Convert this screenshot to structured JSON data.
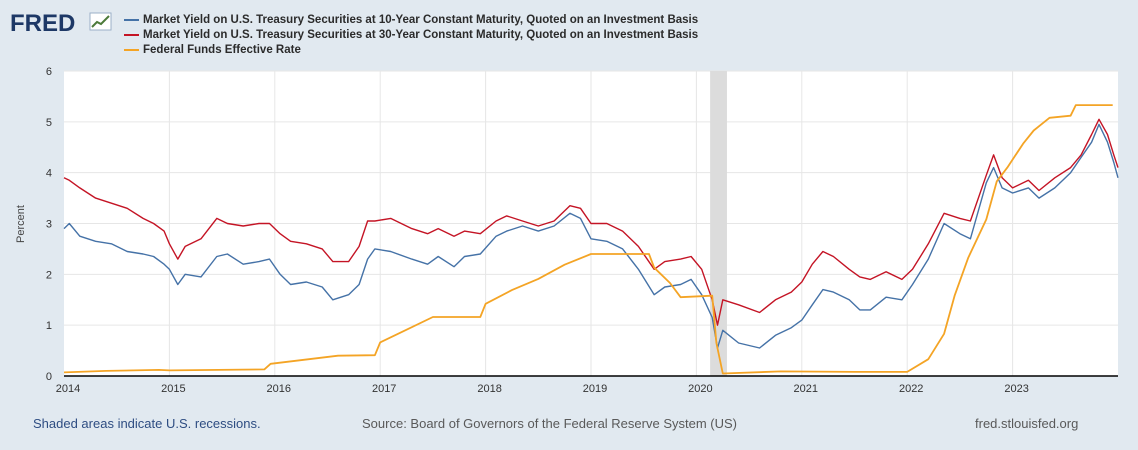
{
  "brand": {
    "logo_text": "FRED"
  },
  "footer": {
    "recession_note": "Shaded areas indicate U.S. recessions.",
    "source": "Source: Board of Governors of the Federal Reserve System (US)",
    "site": "fred.stlouisfed.org"
  },
  "chart_data": {
    "type": "line",
    "ylabel": "Percent",
    "xlabel": "",
    "xlim": [
      2014.0,
      2024.0
    ],
    "ylim": [
      0,
      6
    ],
    "grid": true,
    "legend_position": "top-left",
    "x_ticks": [
      "2014",
      "2015",
      "2016",
      "2017",
      "2018",
      "2019",
      "2020",
      "2021",
      "2022",
      "2023"
    ],
    "y_ticks": [
      "0",
      "1",
      "2",
      "3",
      "4",
      "5",
      "6"
    ],
    "recessions": [
      {
        "start": 2020.13,
        "end": 2020.29
      }
    ],
    "series": [
      {
        "name": "Market Yield on U.S. Treasury Securities at 10-Year Constant Maturity, Quoted on an Investment Basis",
        "color": "#4572a7",
        "points": [
          [
            2014.0,
            2.9
          ],
          [
            2014.05,
            3.0
          ],
          [
            2014.15,
            2.75
          ],
          [
            2014.3,
            2.65
          ],
          [
            2014.45,
            2.6
          ],
          [
            2014.6,
            2.45
          ],
          [
            2014.75,
            2.4
          ],
          [
            2014.85,
            2.35
          ],
          [
            2014.95,
            2.2
          ],
          [
            2015.0,
            2.1
          ],
          [
            2015.08,
            1.8
          ],
          [
            2015.15,
            2.0
          ],
          [
            2015.3,
            1.95
          ],
          [
            2015.45,
            2.35
          ],
          [
            2015.55,
            2.4
          ],
          [
            2015.7,
            2.2
          ],
          [
            2015.85,
            2.25
          ],
          [
            2015.95,
            2.3
          ],
          [
            2016.05,
            2.0
          ],
          [
            2016.15,
            1.8
          ],
          [
            2016.3,
            1.85
          ],
          [
            2016.45,
            1.75
          ],
          [
            2016.55,
            1.5
          ],
          [
            2016.7,
            1.6
          ],
          [
            2016.8,
            1.8
          ],
          [
            2016.88,
            2.3
          ],
          [
            2016.95,
            2.5
          ],
          [
            2017.1,
            2.45
          ],
          [
            2017.3,
            2.3
          ],
          [
            2017.45,
            2.2
          ],
          [
            2017.55,
            2.35
          ],
          [
            2017.7,
            2.15
          ],
          [
            2017.8,
            2.35
          ],
          [
            2017.95,
            2.4
          ],
          [
            2018.1,
            2.75
          ],
          [
            2018.2,
            2.85
          ],
          [
            2018.35,
            2.95
          ],
          [
            2018.5,
            2.85
          ],
          [
            2018.65,
            2.95
          ],
          [
            2018.8,
            3.2
          ],
          [
            2018.9,
            3.1
          ],
          [
            2019.0,
            2.7
          ],
          [
            2019.15,
            2.65
          ],
          [
            2019.3,
            2.5
          ],
          [
            2019.45,
            2.1
          ],
          [
            2019.6,
            1.6
          ],
          [
            2019.7,
            1.75
          ],
          [
            2019.85,
            1.8
          ],
          [
            2019.95,
            1.9
          ],
          [
            2020.05,
            1.6
          ],
          [
            2020.15,
            1.15
          ],
          [
            2020.2,
            0.55
          ],
          [
            2020.25,
            0.9
          ],
          [
            2020.4,
            0.65
          ],
          [
            2020.6,
            0.55
          ],
          [
            2020.75,
            0.8
          ],
          [
            2020.9,
            0.95
          ],
          [
            2021.0,
            1.1
          ],
          [
            2021.1,
            1.4
          ],
          [
            2021.2,
            1.7
          ],
          [
            2021.3,
            1.65
          ],
          [
            2021.45,
            1.5
          ],
          [
            2021.55,
            1.3
          ],
          [
            2021.65,
            1.3
          ],
          [
            2021.8,
            1.55
          ],
          [
            2021.95,
            1.5
          ],
          [
            2022.05,
            1.8
          ],
          [
            2022.2,
            2.3
          ],
          [
            2022.35,
            3.0
          ],
          [
            2022.5,
            2.8
          ],
          [
            2022.6,
            2.7
          ],
          [
            2022.75,
            3.8
          ],
          [
            2022.82,
            4.1
          ],
          [
            2022.9,
            3.7
          ],
          [
            2023.0,
            3.6
          ],
          [
            2023.15,
            3.7
          ],
          [
            2023.25,
            3.5
          ],
          [
            2023.4,
            3.7
          ],
          [
            2023.55,
            4.0
          ],
          [
            2023.65,
            4.3
          ],
          [
            2023.75,
            4.6
          ],
          [
            2023.82,
            4.95
          ],
          [
            2023.9,
            4.6
          ],
          [
            2023.96,
            4.2
          ],
          [
            2024.0,
            3.9
          ]
        ]
      },
      {
        "name": "Market Yield on U.S. Treasury Securities at 30-Year Constant Maturity, Quoted on an Investment Basis",
        "color": "#c41425",
        "points": [
          [
            2014.0,
            3.9
          ],
          [
            2014.05,
            3.85
          ],
          [
            2014.15,
            3.7
          ],
          [
            2014.3,
            3.5
          ],
          [
            2014.45,
            3.4
          ],
          [
            2014.6,
            3.3
          ],
          [
            2014.75,
            3.1
          ],
          [
            2014.85,
            3.0
          ],
          [
            2014.95,
            2.85
          ],
          [
            2015.0,
            2.6
          ],
          [
            2015.08,
            2.3
          ],
          [
            2015.15,
            2.55
          ],
          [
            2015.3,
            2.7
          ],
          [
            2015.45,
            3.1
          ],
          [
            2015.55,
            3.0
          ],
          [
            2015.7,
            2.95
          ],
          [
            2015.85,
            3.0
          ],
          [
            2015.95,
            3.0
          ],
          [
            2016.05,
            2.8
          ],
          [
            2016.15,
            2.65
          ],
          [
            2016.3,
            2.6
          ],
          [
            2016.45,
            2.5
          ],
          [
            2016.55,
            2.25
          ],
          [
            2016.7,
            2.25
          ],
          [
            2016.8,
            2.55
          ],
          [
            2016.88,
            3.05
          ],
          [
            2016.95,
            3.05
          ],
          [
            2017.1,
            3.1
          ],
          [
            2017.3,
            2.9
          ],
          [
            2017.45,
            2.8
          ],
          [
            2017.55,
            2.9
          ],
          [
            2017.7,
            2.75
          ],
          [
            2017.8,
            2.85
          ],
          [
            2017.95,
            2.8
          ],
          [
            2018.1,
            3.05
          ],
          [
            2018.2,
            3.15
          ],
          [
            2018.35,
            3.05
          ],
          [
            2018.5,
            2.95
          ],
          [
            2018.65,
            3.05
          ],
          [
            2018.8,
            3.35
          ],
          [
            2018.9,
            3.3
          ],
          [
            2019.0,
            3.0
          ],
          [
            2019.15,
            3.0
          ],
          [
            2019.3,
            2.85
          ],
          [
            2019.45,
            2.55
          ],
          [
            2019.6,
            2.1
          ],
          [
            2019.7,
            2.25
          ],
          [
            2019.85,
            2.3
          ],
          [
            2019.95,
            2.35
          ],
          [
            2020.05,
            2.1
          ],
          [
            2020.15,
            1.5
          ],
          [
            2020.2,
            1.0
          ],
          [
            2020.25,
            1.5
          ],
          [
            2020.4,
            1.4
          ],
          [
            2020.6,
            1.25
          ],
          [
            2020.75,
            1.5
          ],
          [
            2020.9,
            1.65
          ],
          [
            2021.0,
            1.85
          ],
          [
            2021.1,
            2.2
          ],
          [
            2021.2,
            2.45
          ],
          [
            2021.3,
            2.35
          ],
          [
            2021.45,
            2.1
          ],
          [
            2021.55,
            1.95
          ],
          [
            2021.65,
            1.9
          ],
          [
            2021.8,
            2.05
          ],
          [
            2021.95,
            1.9
          ],
          [
            2022.05,
            2.1
          ],
          [
            2022.2,
            2.6
          ],
          [
            2022.35,
            3.2
          ],
          [
            2022.5,
            3.1
          ],
          [
            2022.6,
            3.05
          ],
          [
            2022.75,
            3.95
          ],
          [
            2022.82,
            4.35
          ],
          [
            2022.9,
            3.9
          ],
          [
            2023.0,
            3.7
          ],
          [
            2023.15,
            3.85
          ],
          [
            2023.25,
            3.65
          ],
          [
            2023.4,
            3.9
          ],
          [
            2023.55,
            4.1
          ],
          [
            2023.65,
            4.35
          ],
          [
            2023.75,
            4.75
          ],
          [
            2023.82,
            5.05
          ],
          [
            2023.9,
            4.75
          ],
          [
            2023.96,
            4.35
          ],
          [
            2024.0,
            4.1
          ]
        ]
      },
      {
        "name": "Federal Funds Effective Rate",
        "color": "#f4a425",
        "points": [
          [
            2014.0,
            0.07
          ],
          [
            2014.4,
            0.1
          ],
          [
            2014.9,
            0.12
          ],
          [
            2015.0,
            0.11
          ],
          [
            2015.9,
            0.13
          ],
          [
            2015.96,
            0.24
          ],
          [
            2016.6,
            0.4
          ],
          [
            2016.95,
            0.41
          ],
          [
            2017.0,
            0.66
          ],
          [
            2017.25,
            0.91
          ],
          [
            2017.5,
            1.16
          ],
          [
            2017.95,
            1.16
          ],
          [
            2018.0,
            1.42
          ],
          [
            2018.25,
            1.69
          ],
          [
            2018.5,
            1.91
          ],
          [
            2018.75,
            2.19
          ],
          [
            2019.0,
            2.4
          ],
          [
            2019.55,
            2.4
          ],
          [
            2019.6,
            2.13
          ],
          [
            2019.75,
            1.83
          ],
          [
            2019.85,
            1.55
          ],
          [
            2020.15,
            1.58
          ],
          [
            2020.19,
            0.65
          ],
          [
            2020.25,
            0.05
          ],
          [
            2020.8,
            0.09
          ],
          [
            2021.5,
            0.08
          ],
          [
            2022.0,
            0.08
          ],
          [
            2022.2,
            0.33
          ],
          [
            2022.35,
            0.83
          ],
          [
            2022.45,
            1.58
          ],
          [
            2022.58,
            2.33
          ],
          [
            2022.75,
            3.08
          ],
          [
            2022.85,
            3.83
          ],
          [
            2022.95,
            4.1
          ],
          [
            2023.1,
            4.57
          ],
          [
            2023.2,
            4.83
          ],
          [
            2023.35,
            5.08
          ],
          [
            2023.55,
            5.12
          ],
          [
            2023.6,
            5.33
          ],
          [
            2023.95,
            5.33
          ]
        ]
      }
    ]
  }
}
